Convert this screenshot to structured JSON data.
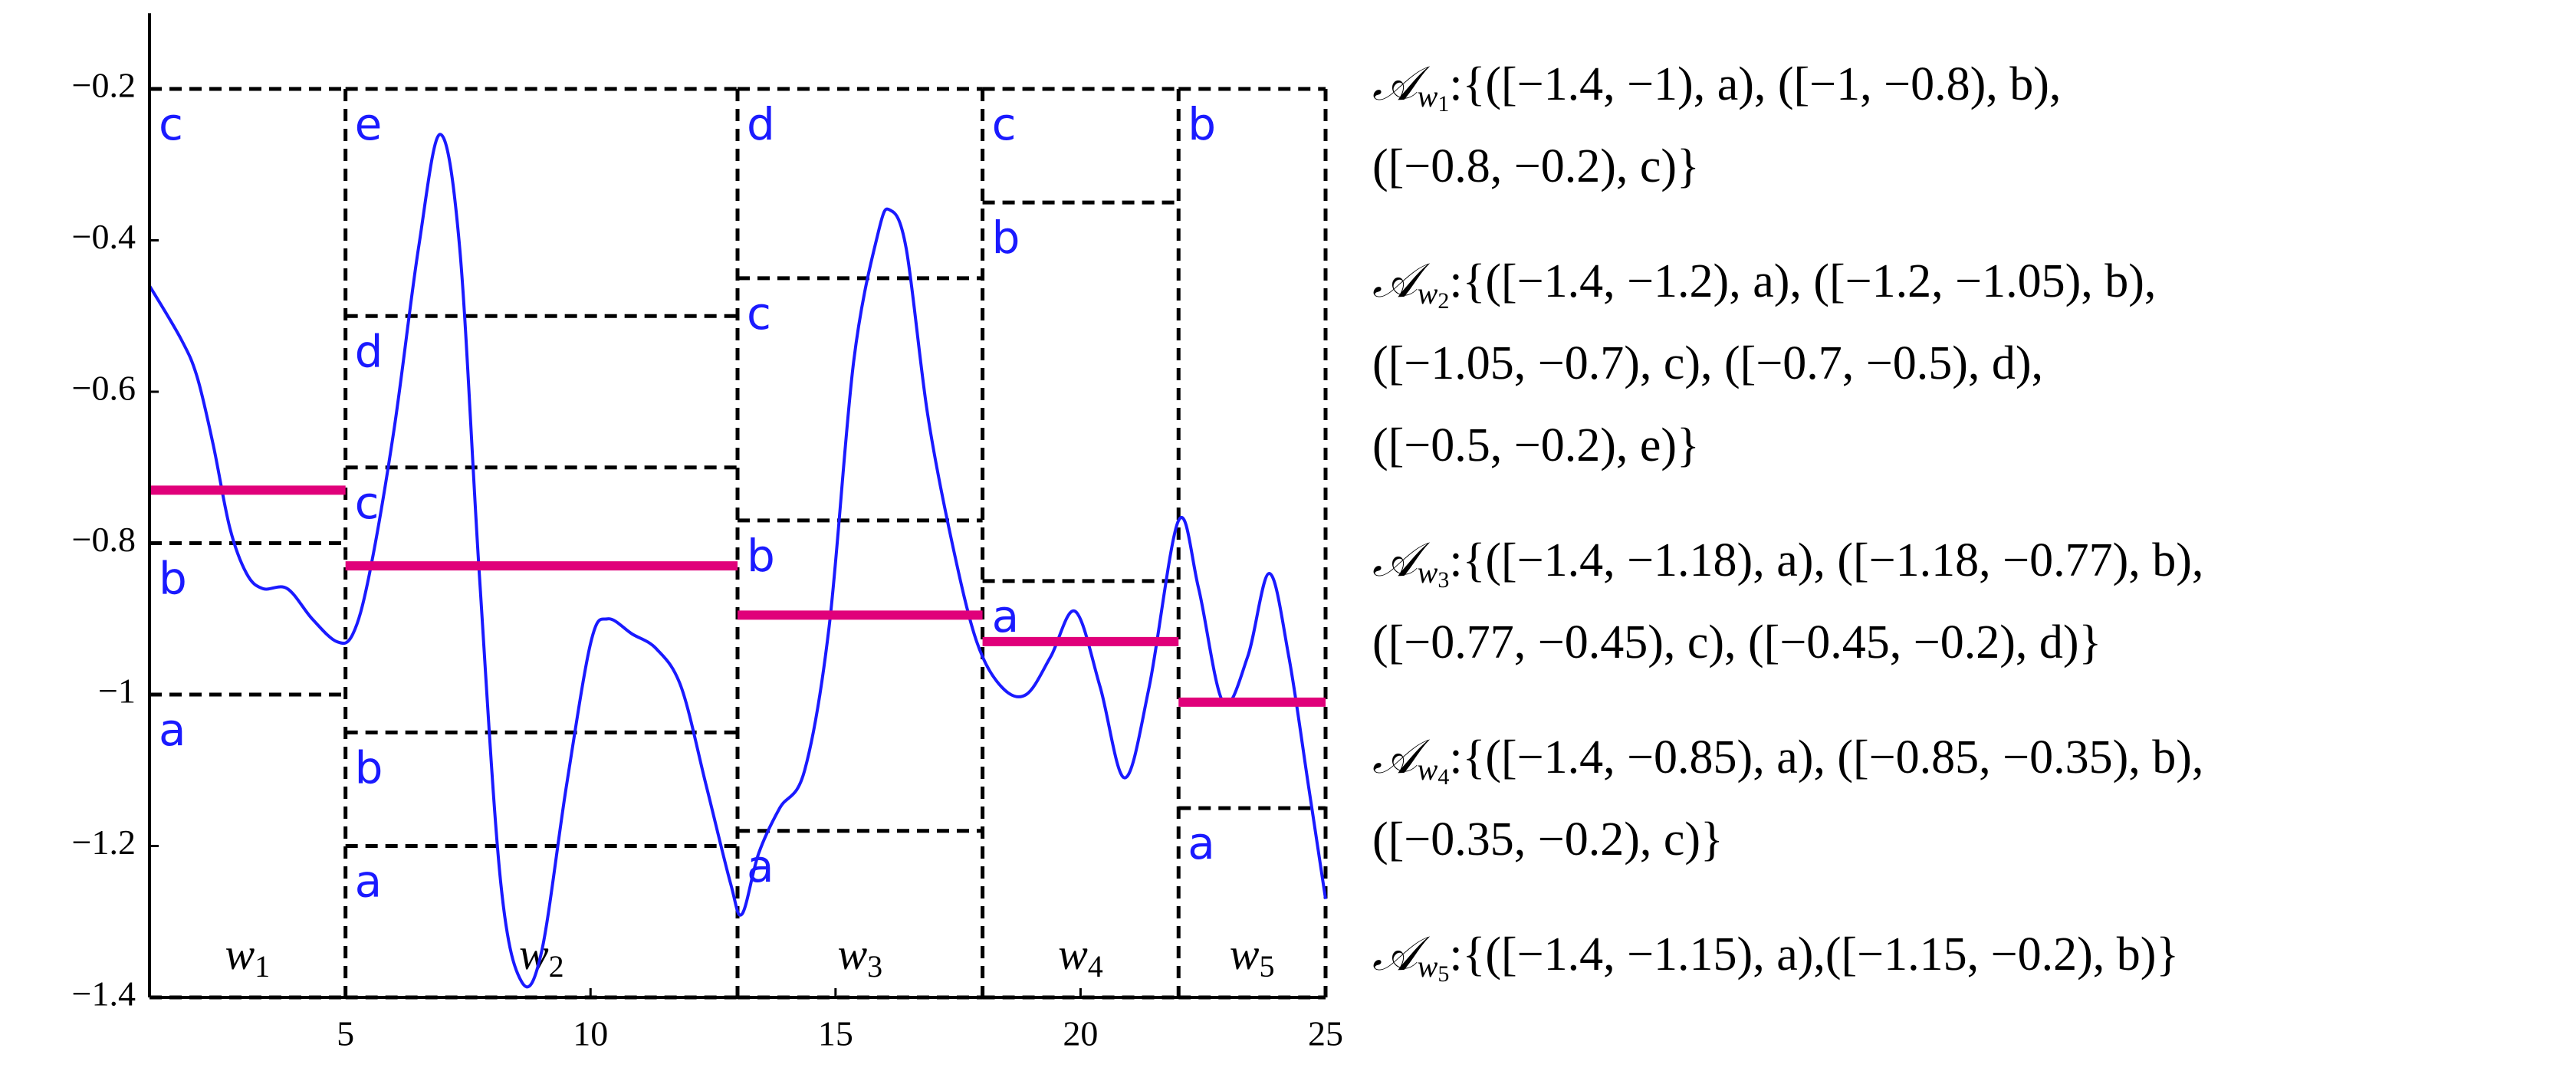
{
  "chart_data": {
    "type": "line",
    "xlim": [
      1,
      25
    ],
    "ylim": [
      -1.4,
      -0.1
    ],
    "xticks": [
      5,
      10,
      15,
      20,
      25
    ],
    "yticks": [
      {
        "value": -1.4,
        "label": "−1.4"
      },
      {
        "value": -1.2,
        "label": "−1.2"
      },
      {
        "value": -1,
        "label": "−1"
      },
      {
        "value": -0.8,
        "label": "−0.8"
      },
      {
        "value": -0.6,
        "label": "−0.6"
      },
      {
        "value": -0.4,
        "label": "−0.4"
      },
      {
        "value": -0.2,
        "label": "−0.2"
      }
    ],
    "x": [
      1,
      1.64,
      1.97,
      2.3,
      2.64,
      2.98,
      3.31,
      3.81,
      4.32,
      4.82,
      5.15,
      5.49,
      5.99,
      6.49,
      6.93,
      7.33,
      7.73,
      8.17,
      8.6,
      9.0,
      9.51,
      10.01,
      10.35,
      10.85,
      11.35,
      11.85,
      12.36,
      12.86,
      13.09,
      13.43,
      13.86,
      14.37,
      14.87,
      15.37,
      15.87,
      16.11,
      16.44,
      16.88,
      17.38,
      17.88,
      18.39,
      18.89,
      19.39,
      19.89,
      20.4,
      20.9,
      21.4,
      22.0,
      22.41,
      22.91,
      23.41,
      23.85,
      24.25,
      24.65,
      25
    ],
    "series": [
      {
        "color": "#1a1aff",
        "values": [
          -0.46,
          -0.53,
          -0.58,
          -0.67,
          -0.78,
          -0.84,
          -0.86,
          -0.86,
          -0.9,
          -0.93,
          -0.92,
          -0.84,
          -0.65,
          -0.41,
          -0.26,
          -0.41,
          -0.84,
          -1.25,
          -1.38,
          -1.34,
          -1.12,
          -0.93,
          -0.9,
          -0.92,
          -0.94,
          -0.99,
          -1.12,
          -1.25,
          -1.29,
          -1.21,
          -1.15,
          -1.1,
          -0.91,
          -0.56,
          -0.39,
          -0.36,
          -0.41,
          -0.63,
          -0.8,
          -0.93,
          -0.99,
          -1.0,
          -0.95,
          -0.89,
          -0.99,
          -1.11,
          -0.99,
          -0.77,
          -0.86,
          -1.01,
          -0.95,
          -0.84,
          -0.95,
          -1.12,
          -1.27
        ]
      }
    ],
    "mean_color": "#e0007a",
    "interval_color": "#1a1aff",
    "windows": [
      {
        "label": "w",
        "index": "1",
        "start": 1,
        "end": 5,
        "mean": -0.73,
        "bounds": [
          -1.4,
          -1,
          -0.8,
          -0.2
        ],
        "symbols": [
          "a",
          "b",
          "c"
        ]
      },
      {
        "label": "w",
        "index": "2",
        "start": 5,
        "end": 13,
        "mean": -0.83,
        "bounds": [
          -1.4,
          -1.2,
          -1.05,
          -0.7,
          -0.5,
          -0.2
        ],
        "symbols": [
          "a",
          "b",
          "c",
          "d",
          "e"
        ]
      },
      {
        "label": "w",
        "index": "3",
        "start": 13,
        "end": 18,
        "mean": -0.895,
        "bounds": [
          -1.4,
          -1.18,
          -0.77,
          -0.45,
          -0.2
        ],
        "symbols": [
          "a",
          "b",
          "c",
          "d"
        ]
      },
      {
        "label": "w",
        "index": "4",
        "start": 18,
        "end": 22,
        "mean": -0.93,
        "bounds": [
          -1.4,
          -0.85,
          -0.35,
          -0.2
        ],
        "symbols": [
          "a",
          "b",
          "c"
        ]
      },
      {
        "label": "w",
        "index": "5",
        "start": 22,
        "end": 25,
        "mean": -1.01,
        "bounds": [
          -1.4,
          -1.15,
          -0.2
        ],
        "symbols": [
          "a",
          "b"
        ]
      }
    ],
    "annotations": [
      {
        "symbol": "𝒜",
        "subscript": "w",
        "index": "1",
        "lines": [
          ":{([−1.4, −1), a), ([−1, −0.8), b),",
          "([−0.8, −0.2), c)}"
        ]
      },
      {
        "symbol": "𝒜",
        "subscript": "w",
        "index": "2",
        "lines": [
          ":{([−1.4, −1.2), a), ([−1.2, −1.05), b),",
          "([−1.05, −0.7), c), ([−0.7, −0.5), d),",
          "([−0.5, −0.2), e)}"
        ]
      },
      {
        "symbol": "𝒜",
        "subscript": "w",
        "index": "3",
        "lines": [
          ":{([−1.4, −1.18), a), ([−1.18, −0.77), b),",
          "([−0.77, −0.45), c), ([−0.45, −0.2), d)}"
        ]
      },
      {
        "symbol": "𝒜",
        "subscript": "w",
        "index": "4",
        "lines": [
          ":{([−1.4, −0.85), a), ([−0.85, −0.35), b),",
          "([−0.35, −0.2), c)}"
        ]
      },
      {
        "symbol": "𝒜",
        "subscript": "w",
        "index": "5",
        "lines": [
          ":{([−1.4, −1.15), a),([−1.15, −0.2), b)}"
        ]
      }
    ]
  }
}
